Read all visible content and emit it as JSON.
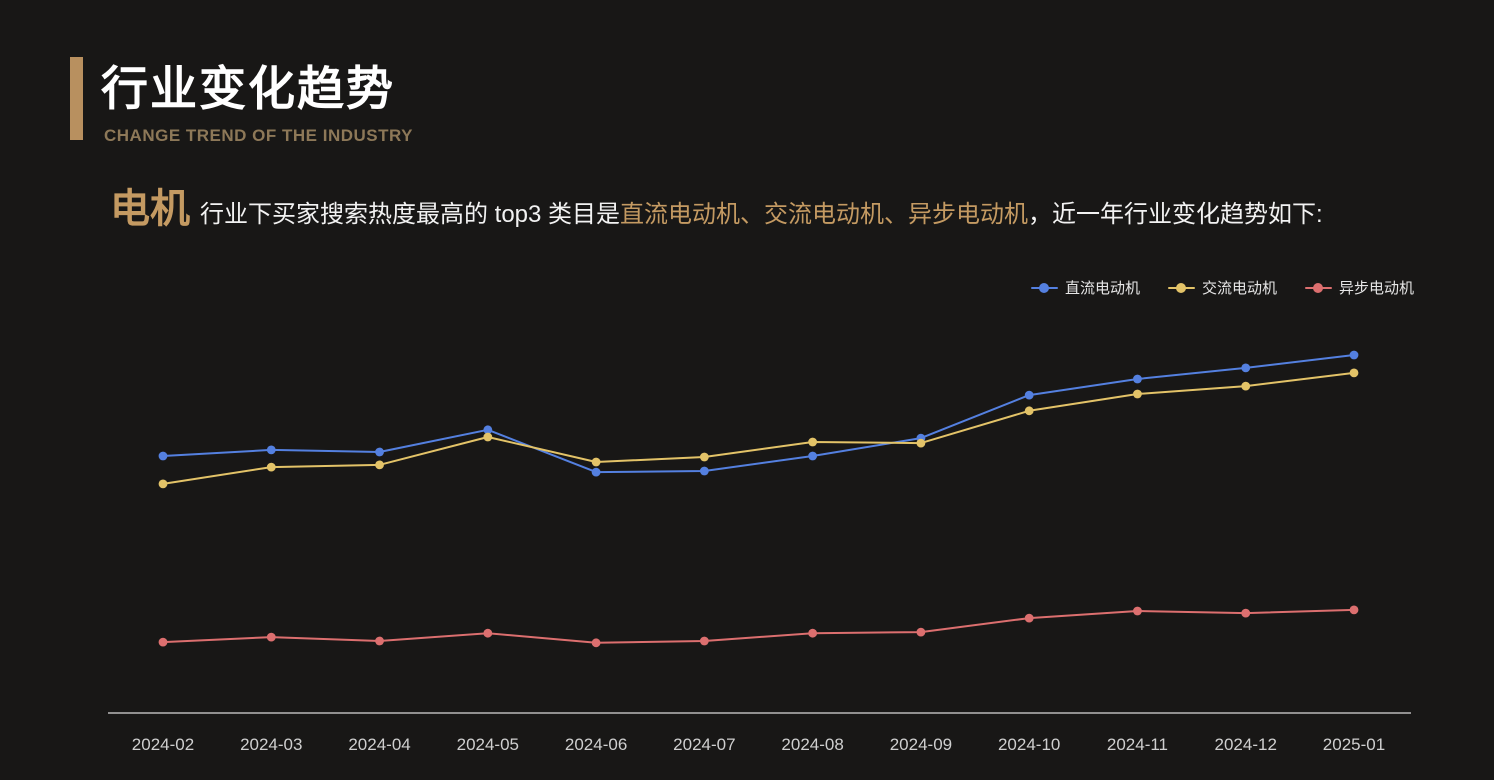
{
  "header": {
    "title": "行业变化趋势",
    "subtitle": "CHANGE TREND OF THE INDUSTRY"
  },
  "intro": {
    "keyword": "电机",
    "text_before": "行业下买家搜索热度最高的 top3 类目是",
    "highlights": [
      "直流电动机",
      "交流电动机",
      "异步电动机"
    ],
    "separator": "、",
    "text_after": "，近一年行业变化趋势如下:"
  },
  "colors": {
    "background": "#181716",
    "accent_gold": "#c49a62",
    "accent_bar": "#b8905f",
    "subtitle": "#8d7858",
    "axis_line": "#d9d9d9",
    "tick_label": "#cfcfcf",
    "series_blue": "#5480e0",
    "series_yellow": "#e3c368",
    "series_red": "#dc6f6f"
  },
  "chart_data": {
    "type": "line",
    "x": [
      "2024-02",
      "2024-03",
      "2024-04",
      "2024-05",
      "2024-06",
      "2024-07",
      "2024-08",
      "2024-09",
      "2024-10",
      "2024-11",
      "2024-12",
      "2025-01"
    ],
    "series": [
      {
        "name": "直流电动机",
        "color": "#5480e0",
        "values": [
          71.8,
          73.5,
          72.9,
          79.1,
          67.3,
          67.6,
          71.8,
          76.8,
          88.8,
          93.3,
          96.4,
          100.0
        ]
      },
      {
        "name": "交流电动机",
        "color": "#e3c368",
        "values": [
          64.0,
          68.7,
          69.3,
          77.1,
          70.1,
          71.5,
          75.7,
          75.4,
          84.4,
          89.1,
          91.3,
          95.0
        ]
      },
      {
        "name": "异步电动机",
        "color": "#dc6f6f",
        "values": [
          19.8,
          21.2,
          20.1,
          22.3,
          19.6,
          20.1,
          22.3,
          22.6,
          26.5,
          28.5,
          27.9,
          28.8
        ]
      }
    ],
    "title": "",
    "xlabel": "",
    "ylabel": "",
    "ylim": [
      0,
      105
    ],
    "y_axis_visible": false,
    "grid": false,
    "legend_position": "top-right",
    "markers": "circle"
  }
}
